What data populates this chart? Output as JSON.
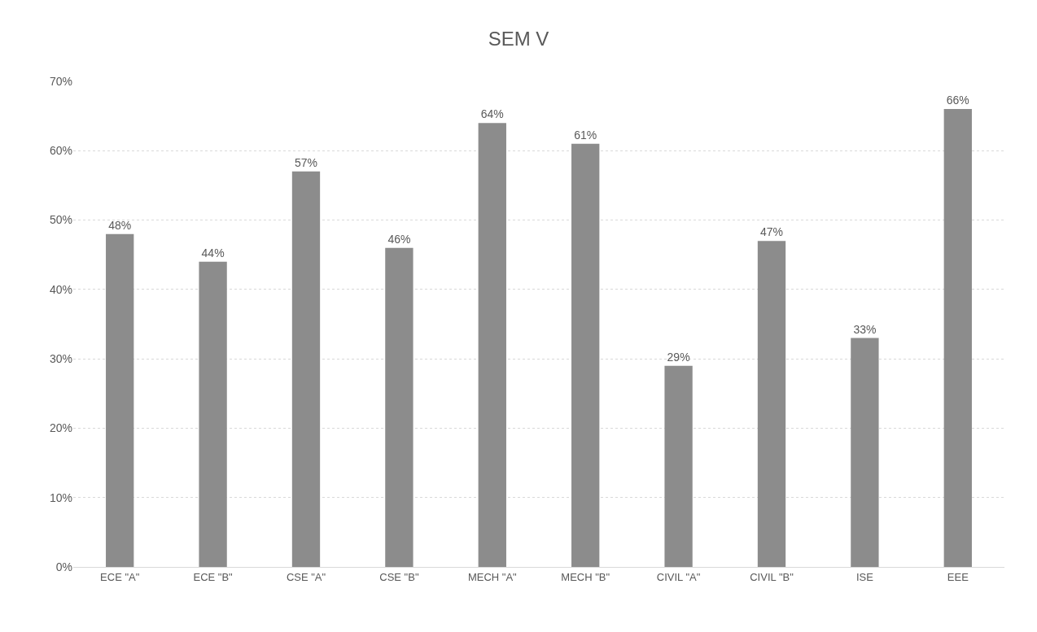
{
  "chart_data": {
    "type": "bar",
    "title": "SEM V",
    "categories": [
      "ECE \"A\"",
      "ECE \"B\"",
      "CSE \"A\"",
      "CSE \"B\"",
      "MECH \"A\"",
      "MECH \"B\"",
      "CIVIL \"A\"",
      "CIVIL \"B\"",
      "ISE",
      "EEE"
    ],
    "values": [
      48,
      44,
      57,
      46,
      64,
      61,
      29,
      47,
      33,
      66
    ],
    "value_labels": [
      "48%",
      "44%",
      "57%",
      "46%",
      "64%",
      "61%",
      "29%",
      "47%",
      "33%",
      "66%"
    ],
    "color": "#8c8c8c",
    "ylim": [
      0,
      70
    ],
    "yticks": [
      {
        "value": 0,
        "label": "0%"
      },
      {
        "value": 10,
        "label": "10%"
      },
      {
        "value": 20,
        "label": "20%"
      },
      {
        "value": 30,
        "label": "30%"
      },
      {
        "value": 40,
        "label": "40%"
      },
      {
        "value": 50,
        "label": "50%"
      },
      {
        "value": 60,
        "label": "60%"
      },
      {
        "value": 70,
        "label": "70%"
      }
    ],
    "grid": "y",
    "legend": false
  }
}
